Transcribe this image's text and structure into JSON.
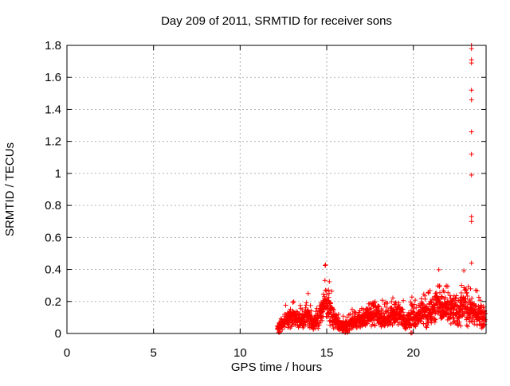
{
  "chart_data": {
    "type": "scatter",
    "title": "Day 209 of 2011, SRMTID for receiver sons",
    "xlabel": "GPS time / hours",
    "ylabel": "SRMTID / TECUs",
    "xlim": [
      0,
      24.2
    ],
    "ylim": [
      0,
      1.8
    ],
    "xticks": [
      0,
      5,
      10,
      15,
      20
    ],
    "xtick_labels": [
      "0",
      "5",
      "10",
      "15",
      "20"
    ],
    "yticks": [
      0,
      0.2,
      0.4,
      0.6,
      0.8,
      1,
      1.2,
      1.4,
      1.6,
      1.8
    ],
    "ytick_labels": [
      "0",
      "0.2",
      "0.4",
      "0.6",
      "0.8",
      "1",
      "1.2",
      "1.4",
      "1.6",
      "1.8"
    ],
    "grid": true,
    "legend": "none",
    "marker": "plus",
    "marker_color": "#ff0000",
    "grid_color": "#b0b0b0",
    "frame_color": "#000000",
    "background_color": "#ffffff",
    "data_start_hour": 12.15,
    "data_end_hour": 24.15,
    "envelope_note": "keyframes [hour, mean TECU, spread TECU] of dense + band; band is mean±spread, rare whiskers to mean+1.6*spread",
    "envelope": [
      [
        12.1,
        0.025,
        0.022
      ],
      [
        12.35,
        0.05,
        0.04
      ],
      [
        12.7,
        0.09,
        0.065
      ],
      [
        13.1,
        0.1,
        0.07
      ],
      [
        13.5,
        0.085,
        0.06
      ],
      [
        13.9,
        0.11,
        0.1
      ],
      [
        14.2,
        0.055,
        0.045
      ],
      [
        14.55,
        0.09,
        0.07
      ],
      [
        14.9,
        0.21,
        0.145
      ],
      [
        15.15,
        0.15,
        0.12
      ],
      [
        15.45,
        0.09,
        0.08
      ],
      [
        15.8,
        0.045,
        0.04
      ],
      [
        16.2,
        0.05,
        0.05
      ],
      [
        16.6,
        0.08,
        0.06
      ],
      [
        17.1,
        0.1,
        0.07
      ],
      [
        17.6,
        0.12,
        0.09
      ],
      [
        17.9,
        0.13,
        0.1
      ],
      [
        18.3,
        0.09,
        0.06
      ],
      [
        18.8,
        0.11,
        0.08
      ],
      [
        19.2,
        0.12,
        0.09
      ],
      [
        19.55,
        0.07,
        0.065
      ],
      [
        19.9,
        0.1,
        0.08
      ],
      [
        20.4,
        0.13,
        0.1
      ],
      [
        20.9,
        0.12,
        0.09
      ],
      [
        21.2,
        0.15,
        0.11
      ],
      [
        21.5,
        0.21,
        0.15
      ],
      [
        21.8,
        0.14,
        0.1
      ],
      [
        22.2,
        0.16,
        0.12
      ],
      [
        22.6,
        0.13,
        0.1
      ],
      [
        22.95,
        0.19,
        0.16
      ],
      [
        23.2,
        0.14,
        0.11
      ],
      [
        23.5,
        0.13,
        0.1
      ],
      [
        23.8,
        0.11,
        0.09
      ],
      [
        24.15,
        0.1,
        0.08
      ]
    ],
    "peak_features": [
      {
        "x": 14.9,
        "ymax": 0.44
      },
      {
        "x": 21.5,
        "ymax": 0.45
      },
      {
        "x": 22.95,
        "ymax": 0.44
      }
    ],
    "outlier_column": {
      "x": 23.36,
      "values": [
        1.8,
        1.78,
        1.71,
        1.69,
        1.52,
        1.46,
        1.26,
        1.12,
        0.99,
        0.73,
        0.7,
        0.44
      ]
    },
    "near_zero_points": [
      [
        12.22,
        0.008
      ],
      [
        12.28,
        0.006
      ],
      [
        19.86,
        0.004
      ],
      [
        19.92,
        0.004
      ]
    ]
  }
}
